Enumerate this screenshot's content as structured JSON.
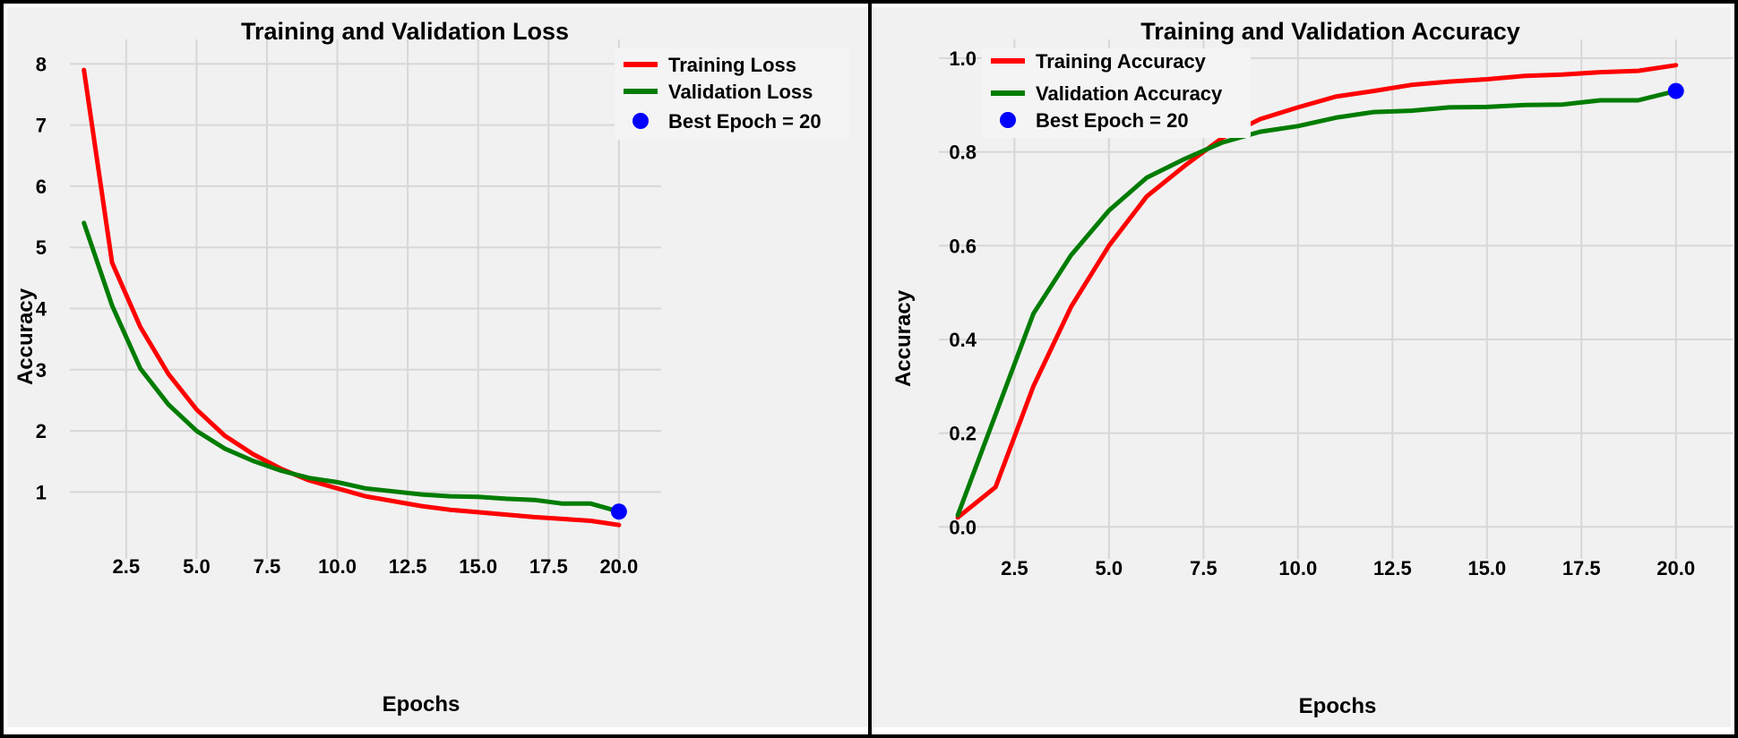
{
  "colors": {
    "training": "#ff0000",
    "validation": "#007c00",
    "best_marker": "#0000ff",
    "plot_background": "#f1f1f1",
    "grid": "#d7d7d7"
  },
  "chart_data": [
    {
      "type": "line",
      "title": "Training and Validation Loss",
      "xlabel": "Epochs",
      "ylabel": "Accuracy",
      "xlim": [
        0.5,
        21.5
      ],
      "ylim": [
        0.2,
        8.4
      ],
      "xticks": [
        2.5,
        5.0,
        7.5,
        10.0,
        12.5,
        15.0,
        17.5,
        20.0
      ],
      "xtick_labels": [
        "2.5",
        "5.0",
        "7.5",
        "10.0",
        "12.5",
        "15.0",
        "17.5",
        "20.0"
      ],
      "yticks": [
        1,
        2,
        3,
        4,
        5,
        6,
        7,
        8
      ],
      "ytick_labels": [
        "1",
        "2",
        "3",
        "4",
        "5",
        "6",
        "7",
        "8"
      ],
      "grid": true,
      "legend_position": "top-right",
      "x": [
        1,
        2,
        3,
        4,
        5,
        6,
        7,
        8,
        9,
        10,
        11,
        12,
        13,
        14,
        15,
        16,
        17,
        18,
        19,
        20
      ],
      "series": [
        {
          "name": "Training Loss",
          "color": "#ff0000",
          "values": [
            7.9,
            4.75,
            3.7,
            2.93,
            2.35,
            1.92,
            1.62,
            1.38,
            1.19,
            1.06,
            0.93,
            0.85,
            0.77,
            0.71,
            0.67,
            0.63,
            0.59,
            0.56,
            0.53,
            0.46
          ]
        },
        {
          "name": "Validation Loss",
          "color": "#007c00",
          "values": [
            5.4,
            4.05,
            3.02,
            2.43,
            2.0,
            1.71,
            1.51,
            1.35,
            1.23,
            1.16,
            1.06,
            1.01,
            0.96,
            0.93,
            0.92,
            0.89,
            0.87,
            0.81,
            0.81,
            0.68
          ]
        }
      ],
      "best_point": {
        "label": "Best Epoch = 20",
        "x": 20,
        "y": 0.68,
        "color": "#0000ff"
      }
    },
    {
      "type": "line",
      "title": "Training and Validation Accuracy",
      "xlabel": "Epochs",
      "ylabel": "Accuracy",
      "xlim": [
        0.5,
        21.5
      ],
      "ylim": [
        -0.03,
        1.04
      ],
      "xticks": [
        2.5,
        5.0,
        7.5,
        10.0,
        12.5,
        15.0,
        17.5,
        20.0
      ],
      "xtick_labels": [
        "2.5",
        "5.0",
        "7.5",
        "10.0",
        "12.5",
        "15.0",
        "17.5",
        "20.0"
      ],
      "yticks": [
        0.0,
        0.2,
        0.4,
        0.6,
        0.8,
        1.0
      ],
      "ytick_labels": [
        "0.0",
        "0.2",
        "0.4",
        "0.6",
        "0.8",
        "1.0"
      ],
      "grid": true,
      "legend_position": "top-left",
      "x": [
        1,
        2,
        3,
        4,
        5,
        6,
        7,
        8,
        9,
        10,
        11,
        12,
        13,
        14,
        15,
        16,
        17,
        18,
        19,
        20
      ],
      "series": [
        {
          "name": "Training Accuracy",
          "color": "#ff0000",
          "values": [
            0.02,
            0.085,
            0.3,
            0.47,
            0.6,
            0.705,
            0.77,
            0.83,
            0.87,
            0.895,
            0.918,
            0.93,
            0.943,
            0.95,
            0.955,
            0.962,
            0.965,
            0.97,
            0.973,
            0.985
          ]
        },
        {
          "name": "Validation Accuracy",
          "color": "#007c00",
          "values": [
            0.025,
            0.24,
            0.455,
            0.58,
            0.675,
            0.745,
            0.785,
            0.82,
            0.843,
            0.855,
            0.873,
            0.885,
            0.888,
            0.895,
            0.896,
            0.9,
            0.901,
            0.91,
            0.91,
            0.93
          ]
        }
      ],
      "best_point": {
        "label": "Best Epoch = 20",
        "x": 20,
        "y": 0.93,
        "color": "#0000ff"
      }
    }
  ]
}
